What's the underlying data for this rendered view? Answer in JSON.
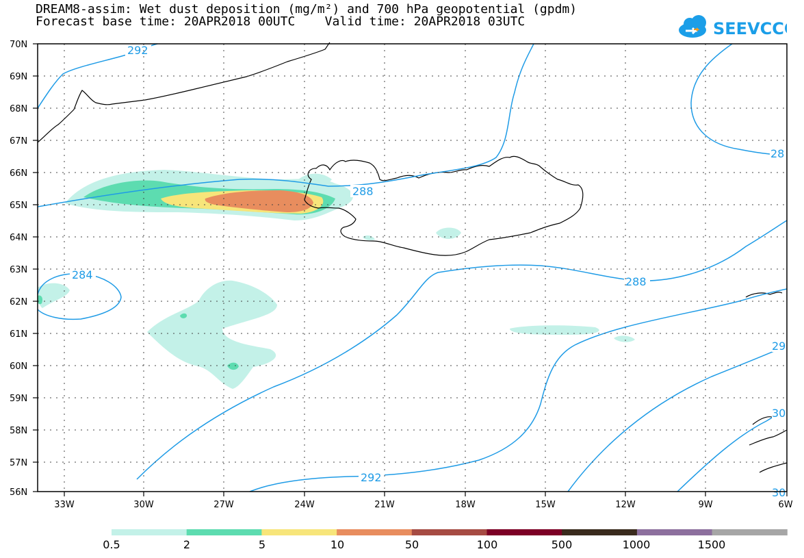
{
  "title_line1": "DREAM8-assim: Wet dust deposition (mg/m²) and 700 hPa geopotential (gpdm)",
  "title_line2": "Forecast base time: 20APR2018 00UTC    Valid time: 20APR2018 03UTC",
  "logo_text": "SEEVCCC",
  "map": {
    "lat_labels": [
      "70N",
      "69N",
      "68N",
      "67N",
      "66N",
      "65N",
      "64N",
      "63N",
      "62N",
      "61N",
      "60N",
      "59N",
      "58N",
      "57N",
      "56N"
    ],
    "lon_labels": [
      "33W",
      "30W",
      "27W",
      "24W",
      "21W",
      "18W",
      "15W",
      "12W",
      "9W",
      "6W"
    ],
    "contour_labels": [
      "292",
      "288",
      "28",
      "284",
      "288",
      "292",
      "29",
      "30",
      "30"
    ],
    "contour_color": "#1e9be6"
  },
  "legend": {
    "labels": [
      "0.5",
      "2",
      "5",
      "10",
      "50",
      "100",
      "500",
      "1000",
      "1500"
    ],
    "colors": [
      "#c3f1e8",
      "#5ddcb0",
      "#f7e57a",
      "#e88d5e",
      "#a64b43",
      "#7c0025",
      "#3a2b1d",
      "#8d709e",
      "#a6a6a6"
    ]
  }
}
